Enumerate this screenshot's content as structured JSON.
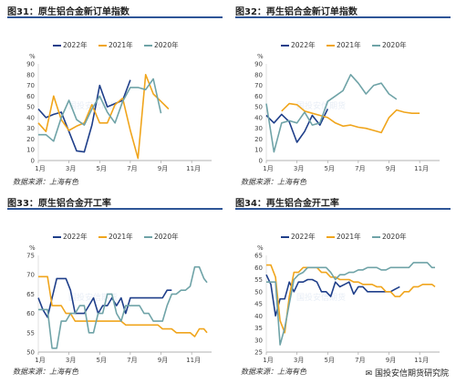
{
  "watermark": "国投安信期货",
  "brand": "国投安信期货研究院",
  "colors": {
    "s2022": "#1f3f8a",
    "s2021": "#f0a51c",
    "s2020": "#6fa3a7",
    "title_rule": "#2e5597"
  },
  "charts": [
    {
      "id": "c31",
      "title": "图31：原生铝合金新订单指数",
      "unit": "%",
      "legend": [
        "2022年",
        "2021年",
        "2020年"
      ],
      "source": "数据来源：上海有色",
      "xticks": [
        "1月",
        "3月",
        "5月",
        "7月",
        "9月",
        "11月"
      ],
      "yticks": [
        0,
        10,
        20,
        30,
        40,
        50,
        60,
        70,
        80,
        90
      ]
    },
    {
      "id": "c32",
      "title": "图32：再生铝合金新订单指数",
      "unit": "%",
      "legend": [
        "2022年",
        "2021年",
        "2020年"
      ],
      "source": "数据来源：上海有色",
      "xticks": [
        "1月",
        "3月",
        "5月",
        "7月",
        "9月",
        "11月"
      ],
      "yticks": [
        0,
        10,
        20,
        30,
        40,
        50,
        60,
        70,
        80,
        90
      ]
    },
    {
      "id": "c33",
      "title": "图33：原生铝合金开工率",
      "unit": "%",
      "legend": [
        "2022年",
        "2021年",
        "2020年"
      ],
      "source": "数据来源：上海有色",
      "xticks": [
        "1月",
        "3月",
        "5月",
        "7月",
        "9月",
        "11月"
      ],
      "yticks": [
        50,
        55,
        60,
        65,
        70,
        75
      ]
    },
    {
      "id": "c34",
      "title": "图34：再生铝合金开工率",
      "unit": "%",
      "legend": [
        "2022年",
        "2021年",
        "2020年"
      ],
      "source": "数据来源：上海有色",
      "xticks": [
        "1月",
        "3月",
        "5月",
        "7月",
        "9月",
        "11月"
      ],
      "yticks": [
        25,
        30,
        35,
        40,
        45,
        50,
        55,
        60,
        65
      ]
    }
  ],
  "chart_data": [
    {
      "type": "line",
      "title": "图31：原生铝合金新订单指数",
      "ylabel": "%",
      "ylim": [
        0,
        90
      ],
      "x": [
        1,
        1.5,
        2,
        2.5,
        3,
        3.5,
        4,
        4.5,
        5,
        5.5,
        6,
        6.5,
        7,
        7.5,
        8,
        8.5,
        9,
        9.5,
        10,
        10.5,
        11,
        11.5,
        12
      ],
      "series": [
        {
          "name": "2022年",
          "x": [
            1,
            1.5,
            2,
            2.5,
            3,
            3.5,
            4,
            4.5,
            5,
            5.5,
            6,
            6.5,
            7,
            7.5,
            8,
            8.5,
            9
          ],
          "values": [
            48,
            40,
            43,
            45,
            27,
            9,
            8,
            33,
            70,
            50,
            53,
            56,
            75,
            null,
            null,
            null,
            null
          ]
        },
        {
          "name": "2021年",
          "x": [
            1,
            1.5,
            2,
            2.5,
            3,
            3.5,
            4,
            4.5,
            5,
            5.5,
            6,
            6.5,
            7,
            7.5,
            8,
            8.5,
            9,
            9.5,
            10,
            10.5,
            11,
            11.5,
            12
          ],
          "values": [
            35,
            27,
            60,
            38,
            28,
            32,
            35,
            52,
            35,
            35,
            52,
            58,
            28,
            2,
            80,
            62,
            55,
            48,
            null,
            null,
            null,
            null,
            null
          ]
        },
        {
          "name": "2020年",
          "x": [
            1,
            1.5,
            2,
            2.5,
            3,
            3.5,
            4,
            4.5,
            5,
            5.5,
            6,
            6.5,
            7,
            7.5,
            8,
            8.5,
            9,
            9.5,
            10,
            10.5,
            11,
            11.5,
            12
          ],
          "values": [
            24,
            24,
            18,
            40,
            56,
            38,
            33,
            48,
            60,
            45,
            35,
            55,
            68,
            68,
            66,
            76,
            44,
            null,
            null,
            null,
            null,
            null,
            null
          ]
        }
      ]
    },
    {
      "type": "line",
      "title": "图32：再生铝合金新订单指数",
      "ylabel": "%",
      "ylim": [
        0,
        90
      ],
      "x": [
        1,
        1.5,
        2,
        2.5,
        3,
        3.5,
        4,
        4.5,
        5,
        5.5,
        6,
        6.5,
        7,
        7.5,
        8,
        8.5,
        9,
        9.5,
        10,
        10.5,
        11,
        11.5,
        12
      ],
      "series": [
        {
          "name": "2022年",
          "values": [
            42,
            35,
            43,
            36,
            17,
            27,
            42,
            33,
            48,
            null,
            null,
            null,
            null,
            null,
            null,
            null,
            null,
            null,
            null,
            null,
            null,
            null,
            null
          ]
        },
        {
          "name": "2021年",
          "values": [
            null,
            null,
            46,
            53,
            52,
            46,
            44,
            42,
            40,
            35,
            32,
            33,
            31,
            30,
            28,
            26,
            40,
            47,
            45,
            44,
            44,
            null,
            null
          ]
        },
        {
          "name": "2020年",
          "values": [
            53,
            8,
            35,
            37,
            35,
            45,
            33,
            35,
            55,
            60,
            65,
            80,
            72,
            62,
            70,
            72,
            62,
            57,
            null,
            null,
            null,
            null,
            null
          ]
        }
      ]
    },
    {
      "type": "line",
      "title": "图33：原生铝合金开工率",
      "ylabel": "%",
      "ylim": [
        50,
        75
      ],
      "series": [
        {
          "name": "2022年",
          "x": [
            1,
            1.3,
            1.6,
            1.9,
            2.2,
            2.5,
            2.8,
            3.1,
            3.4,
            3.7,
            4,
            4.3,
            4.6,
            4.9,
            5.2,
            5.5,
            5.8,
            6.1,
            6.4,
            6.7,
            7,
            7.3,
            7.6,
            7.9,
            8.2,
            8.5,
            8.8,
            9.1,
            9.4,
            9.7
          ],
          "values": [
            64,
            61,
            59,
            64,
            69,
            69,
            69,
            66,
            60,
            60,
            60,
            62,
            64,
            60,
            62,
            62,
            64,
            62,
            64,
            60,
            64,
            64,
            64,
            64,
            64,
            64,
            64,
            64,
            66,
            66
          ]
        },
        {
          "name": "2021年",
          "x": [
            1,
            1.3,
            1.6,
            1.9,
            2.2,
            2.5,
            2.8,
            3.1,
            3.4,
            3.7,
            4,
            4.3,
            4.6,
            4.9,
            5.2,
            5.5,
            5.8,
            6.1,
            6.4,
            6.7,
            7,
            7.3,
            7.6,
            7.9,
            8.2,
            8.5,
            8.8,
            9.1,
            9.4,
            9.7,
            10,
            10.3,
            10.6,
            10.9,
            11.2,
            11.5,
            11.8,
            12
          ],
          "values": [
            69.5,
            69.5,
            69.5,
            62,
            62,
            62,
            60,
            60,
            58,
            58,
            58,
            58,
            58,
            58,
            58,
            58,
            58,
            58,
            58,
            57,
            57,
            57,
            57,
            57,
            57,
            57,
            57,
            56,
            56,
            56,
            55,
            55,
            55,
            55,
            54,
            56,
            56,
            55
          ]
        },
        {
          "name": "2020年",
          "x": [
            1,
            1.3,
            1.6,
            1.9,
            2.2,
            2.5,
            2.8,
            3.1,
            3.4,
            3.7,
            4,
            4.3,
            4.6,
            4.9,
            5.2,
            5.5,
            5.8,
            6.1,
            6.4,
            6.7,
            7,
            7.3,
            7.6,
            7.9,
            8.2,
            8.5,
            8.8,
            9.1,
            9.4,
            9.7,
            10,
            10.3,
            10.6,
            10.9,
            11.2,
            11.5,
            11.8,
            12
          ],
          "values": [
            61,
            61,
            61,
            51,
            51,
            58,
            58,
            60,
            60,
            62,
            62,
            55,
            55,
            60,
            60,
            65,
            65,
            60,
            58,
            62,
            62,
            62,
            62,
            60,
            60,
            58,
            58,
            58,
            62,
            65,
            65,
            66,
            66,
            67,
            72,
            72,
            69,
            68
          ]
        }
      ]
    },
    {
      "type": "line",
      "title": "图34：再生铝合金开工率",
      "ylabel": "%",
      "ylim": [
        25,
        65
      ],
      "series": [
        {
          "name": "2022年",
          "x": [
            1,
            1.3,
            1.6,
            1.9,
            2.2,
            2.5,
            2.8,
            3.1,
            3.4,
            3.7,
            4,
            4.3,
            4.6,
            4.9,
            5.2,
            5.5,
            5.8,
            6.1,
            6.4,
            6.7,
            7,
            7.3,
            7.6,
            7.9,
            8.2,
            8.5,
            8.8,
            9.1,
            9.4,
            9.7
          ],
          "values": [
            57,
            53,
            40,
            47,
            47,
            54,
            50,
            54,
            54,
            55,
            55,
            54,
            50,
            50,
            48,
            54,
            52,
            53,
            54,
            49,
            52,
            52,
            50,
            50,
            50,
            50,
            50,
            50,
            51,
            52
          ]
        },
        {
          "name": "2021年",
          "x": [
            1,
            1.3,
            1.6,
            1.9,
            2.2,
            2.5,
            2.8,
            3.1,
            3.4,
            3.7,
            4,
            4.3,
            4.6,
            4.9,
            5.2,
            5.5,
            5.8,
            6.1,
            6.4,
            6.7,
            7,
            7.3,
            7.6,
            7.9,
            8.2,
            8.5,
            8.8,
            9.1,
            9.4,
            9.7,
            10,
            10.3,
            10.6,
            10.9,
            11.2,
            11.5,
            11.8,
            12
          ],
          "values": [
            61,
            61,
            56,
            38,
            33,
            48,
            58,
            58,
            60,
            60,
            60,
            60,
            58,
            58,
            56,
            56,
            55,
            55,
            55,
            54,
            54,
            53,
            53,
            53,
            52,
            52,
            50,
            50,
            48,
            48,
            50,
            50,
            52,
            52,
            53,
            53,
            53,
            52
          ]
        },
        {
          "name": "2020年",
          "x": [
            1,
            1.3,
            1.6,
            1.9,
            2.2,
            2.5,
            2.8,
            3.1,
            3.4,
            3.7,
            4,
            4.3,
            4.6,
            4.9,
            5.2,
            5.5,
            5.8,
            6.1,
            6.4,
            6.7,
            7,
            7.3,
            7.6,
            7.9,
            8.2,
            8.5,
            8.8,
            9.1,
            9.4,
            9.7,
            10,
            10.3,
            10.6,
            10.9,
            11.2,
            11.5,
            11.8,
            12
          ],
          "values": [
            54,
            54,
            54,
            28,
            35,
            45,
            55,
            57,
            58,
            60,
            60,
            60,
            60,
            60,
            58,
            55,
            57,
            57,
            58,
            58,
            59,
            59,
            60,
            60,
            60,
            59,
            59,
            60,
            60,
            60,
            60,
            60,
            62,
            62,
            62,
            62,
            60,
            60
          ]
        }
      ]
    }
  ]
}
